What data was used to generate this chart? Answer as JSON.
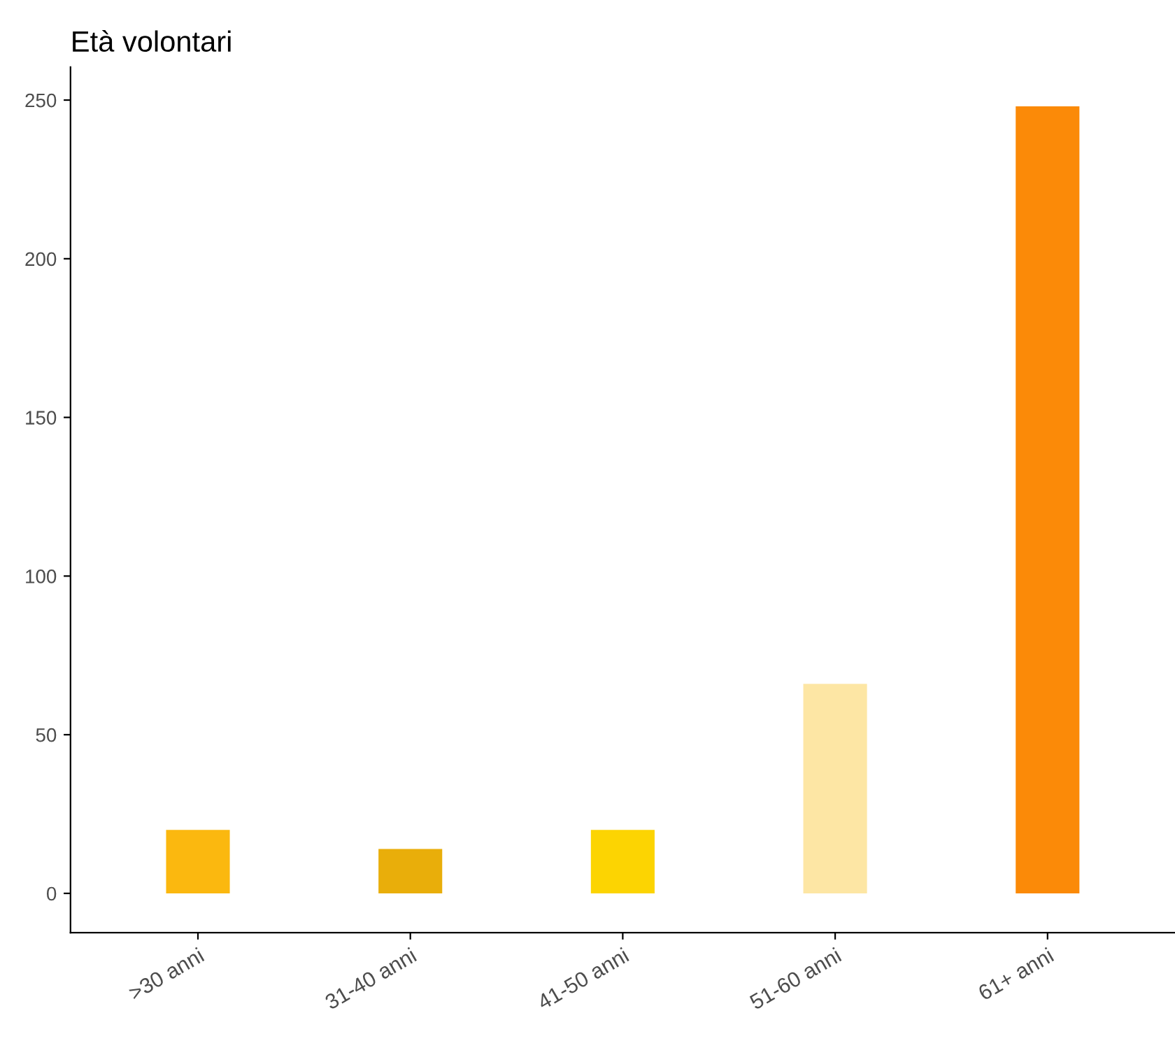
{
  "chart_data": {
    "type": "bar",
    "title": "Età volontari",
    "categories": [
      ">30 anni",
      "31-40 anni",
      "41-50 anni",
      "51-60 anni",
      "61+ anni"
    ],
    "values": [
      20,
      14,
      20,
      66,
      248
    ],
    "colors": [
      "#fbb80f",
      "#e9ae0a",
      "#fcd402",
      "#fde6a4",
      "#fb8a08"
    ],
    "ylim": [
      -12.4,
      260.4
    ],
    "yticks": [
      0,
      50,
      100,
      150,
      200,
      250
    ],
    "grid": false,
    "legend": false
  }
}
